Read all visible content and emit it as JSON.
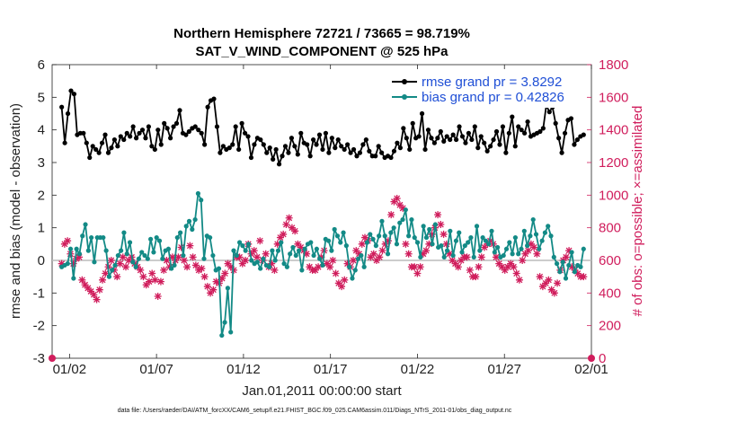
{
  "chart_data": {
    "type": "line",
    "title_line1": "Northern Hemisphere 72721 / 73665 = 98.719%",
    "title_line2": "SAT_V_WIND_COMPONENT @ 525 hPa",
    "xlabel": "Jan.01,2011 00:00:00 start",
    "ylabel": "rmse and bias (model - observation)",
    "ylabel_right": "# of obs: o=possible; ×=assimilated",
    "footnote": "data file: /Users/raeder/DAI/ATM_forcXX/CAM6_setup/f.e21.FHIST_BGC.f09_025.CAM6assim.011/Diags_NTrS_2011-01/obs_diag_output.nc",
    "x_ticks": [
      {
        "day": 2,
        "label": "01/02"
      },
      {
        "day": 7,
        "label": "01/07"
      },
      {
        "day": 12,
        "label": "01/12"
      },
      {
        "day": 17,
        "label": "01/17"
      },
      {
        "day": 22,
        "label": "01/22"
      },
      {
        "day": 27,
        "label": "01/27"
      },
      {
        "day": 32,
        "label": "02/01"
      }
    ],
    "xlim": [
      1,
      32
    ],
    "ylim": [
      -3,
      6
    ],
    "yticks": [
      "-3",
      "-2",
      "-1",
      "0",
      "1",
      "2",
      "3",
      "4",
      "5",
      "6"
    ],
    "ylim_right": [
      0,
      1800
    ],
    "yticks_right": [
      "0",
      "200",
      "400",
      "600",
      "800",
      "1000",
      "1200",
      "1400",
      "1600",
      "1800"
    ],
    "legend_position": "top-right",
    "series": [
      {
        "name": "rmse grand pr = 3.8292",
        "color": "#000000",
        "axis": "left",
        "values": [
          4.7,
          3.6,
          4.5,
          5.2,
          5.1,
          3.85,
          3.9,
          3.9,
          3.6,
          3.15,
          3.5,
          3.4,
          3.3,
          3.6,
          3.85,
          3.3,
          3.45,
          3.7,
          3.5,
          3.8,
          3.7,
          3.9,
          3.8,
          4.1,
          3.75,
          3.9,
          4.0,
          3.75,
          4.1,
          3.5,
          3.4,
          4.0,
          3.55,
          4.2,
          4.05,
          3.75,
          4.1,
          4.2,
          4.6,
          3.9,
          3.85,
          3.95,
          4.05,
          4.1,
          4.0,
          3.9,
          3.55,
          4.7,
          4.9,
          4.95,
          4.1,
          3.3,
          3.5,
          3.4,
          3.45,
          3.55,
          4.1,
          3.4,
          4.2,
          3.9,
          3.8,
          3.15,
          3.55,
          3.75,
          3.7,
          3.55,
          3.3,
          3.45,
          3.1,
          3.4,
          2.95,
          3.2,
          3.5,
          3.3,
          3.75,
          3.5,
          3.25,
          3.9,
          3.6,
          3.55,
          3.2,
          3.7,
          3.55,
          3.85,
          3.4,
          3.9,
          3.3,
          3.75,
          3.45,
          3.7,
          3.5,
          3.4,
          3.55,
          3.3,
          3.4,
          3.2,
          3.3,
          3.55,
          3.7,
          3.35,
          3.2,
          3.2,
          3.5,
          3.3,
          3.15,
          3.2,
          3.15,
          3.35,
          3.6,
          3.45,
          4.05,
          3.75,
          3.4,
          4.2,
          3.75,
          3.8,
          4.5,
          3.4,
          4.0,
          3.75,
          3.6,
          3.75,
          3.95,
          3.65,
          3.8,
          3.7,
          3.85,
          3.7,
          4.1,
          3.8,
          3.6,
          3.9,
          3.7,
          4.1,
          3.45,
          3.8,
          3.6,
          3.35,
          3.5,
          3.7,
          3.95,
          3.55,
          4.1,
          3.3,
          3.9,
          4.4,
          3.5,
          4.1,
          4.0,
          3.9,
          4.25,
          3.8,
          3.85,
          3.9,
          3.95,
          4.05,
          4.75,
          4.55,
          4.7,
          4.2,
          3.75,
          3.3,
          3.9,
          4.3,
          4.35,
          3.55,
          3.7,
          3.8,
          3.85
        ]
      },
      {
        "name": "bias grand pr = 0.42826",
        "color": "#138a86",
        "axis": "left",
        "values": [
          -0.2,
          -0.15,
          -0.1,
          0.35,
          -0.55,
          0.35,
          0.2,
          0.75,
          1.1,
          0.3,
          0.7,
          -0.05,
          0.7,
          0.7,
          0.7,
          0.3,
          -0.5,
          -0.3,
          -0.15,
          0.15,
          0.3,
          0.85,
          0.2,
          0.55,
          -0.05,
          -0.2,
          0.05,
          0.25,
          0.15,
          0.05,
          0.65,
          0.25,
          0.7,
          0.6,
          0.05,
          0.3,
          0.35,
          -0.25,
          -0.15,
          0.7,
          0.85,
          0.15,
          1.05,
          1.2,
          0.95,
          1.25,
          2.05,
          1.85,
          0.05,
          0.75,
          0.7,
          0.15,
          -0.3,
          -0.25,
          -2.3,
          -1.9,
          -0.85,
          -2.2,
          0.3,
          0.15,
          0.55,
          0.45,
          0.3,
          0.5,
          0.0,
          -0.1,
          -0.05,
          -0.25,
          0.05,
          -0.15,
          -0.2,
          0.3,
          0.0,
          0.3,
          0.55,
          -0.1,
          -0.2,
          0.2,
          0.4,
          0.15,
          0.3,
          -0.3,
          0.35,
          0.5,
          0.55,
          0.15,
          0.35,
          0.05,
          -0.15,
          0.65,
          0.6,
          0.3,
          0.95,
          0.75,
          0.55,
          0.85,
          0.45,
          -0.2,
          -0.55,
          -0.3,
          0.05,
          0.15,
          -0.2,
          0.55,
          0.8,
          0.65,
          0.45,
          0.75,
          1.2,
          0.75,
          0.2,
          0.85,
          1.0,
          0.5,
          1.15,
          1.25,
          1.55,
          0.75,
          1.25,
          0.7,
          0.55,
          0.1,
          1.05,
          0.7,
          0.95,
          0.5,
          1.1,
          0.4,
          0.45,
          0.1,
          0.3,
          0.9,
          0.15,
          0.6,
          0.85,
          0.25,
          0.45,
          0.55,
          0.7,
          0.1,
          1.05,
          0.3,
          0.7,
          0.6,
          0.5,
          0.9,
          0.25,
          0.4,
          0.1,
          0.15,
          0.35,
          0.55,
          0.2,
          0.7,
          0.2,
          0.35,
          0.9,
          0.45,
          0.75,
          1.25,
          0.8,
          0.35,
          0.6,
          0.85,
          1.05,
          0.75,
          0.1,
          -0.1,
          -0.35,
          -0.05,
          -0.55,
          -0.15,
          0.25,
          -0.35,
          -0.15,
          -0.2,
          0.35
        ]
      }
    ],
    "obs_assimilated": {
      "name": "assimilated",
      "color": "#d01d5c",
      "axis": "right",
      "values": [
        580,
        700,
        720,
        640,
        580,
        610,
        620,
        480,
        450,
        430,
        410,
        390,
        360,
        420,
        480,
        520,
        560,
        600,
        540,
        500,
        580,
        620,
        560,
        600,
        620,
        580,
        560,
        540,
        500,
        450,
        470,
        520,
        480,
        380,
        470,
        540,
        600,
        560,
        620,
        600,
        620,
        680,
        600,
        560,
        690,
        620,
        570,
        540,
        550,
        500,
        440,
        400,
        420,
        470,
        460,
        490,
        520,
        580,
        560,
        540,
        620,
        620,
        580,
        600,
        700,
        640,
        660,
        620,
        720,
        600,
        640,
        560,
        580,
        540,
        700,
        740,
        760,
        820,
        860,
        800,
        780,
        700,
        680,
        660,
        640,
        560,
        540,
        540,
        560,
        620,
        660,
        580,
        560,
        600,
        520,
        460,
        440,
        480,
        580,
        560,
        600,
        660,
        640,
        700,
        740,
        720,
        620,
        640,
        600,
        620,
        660,
        700,
        720,
        880,
        960,
        980,
        940,
        920,
        700,
        640,
        560,
        560,
        520,
        560,
        640,
        660,
        700,
        760,
        800,
        880,
        820,
        760,
        700,
        640,
        600,
        580,
        560,
        600,
        620,
        620,
        540,
        500,
        500,
        560,
        620,
        680,
        700,
        720,
        700,
        620,
        580,
        560,
        540,
        560,
        580,
        560,
        520,
        480,
        600,
        640,
        660,
        700,
        680,
        640,
        500,
        440,
        460,
        480,
        420,
        400,
        460,
        540,
        600,
        620,
        660,
        560,
        540,
        520,
        500,
        500
      ]
    },
    "obs_possible": {
      "name": "possible",
      "color": "#d01d5c",
      "axis": "right",
      "values": [
        0,
        0
      ]
    }
  }
}
